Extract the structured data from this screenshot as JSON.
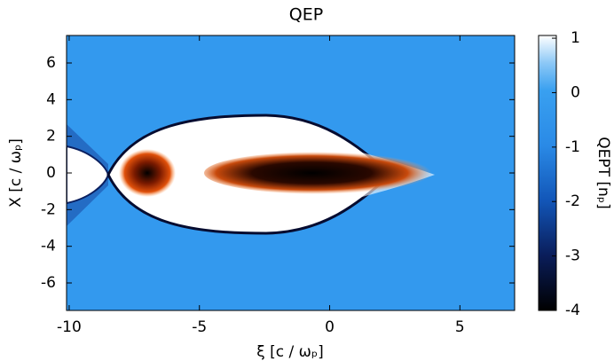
{
  "chart_data": {
    "type": "heatmap",
    "title": "QEP",
    "x_label": "ξ [c / ωₚ]",
    "y_label": "X [c / ωₚ]",
    "colorbar_label": "QEPT [nₚ]",
    "xlim": [
      -10.1,
      7.1
    ],
    "xticks": [
      -10,
      -5,
      0,
      5
    ],
    "ylim": [
      -7.5,
      7.5
    ],
    "yticks": [
      -6,
      -4,
      -2,
      0,
      2,
      4,
      6
    ],
    "clim": [
      -4,
      1.05
    ],
    "cticks": [
      -4,
      -3,
      -2,
      -1,
      0,
      1
    ]
  }
}
